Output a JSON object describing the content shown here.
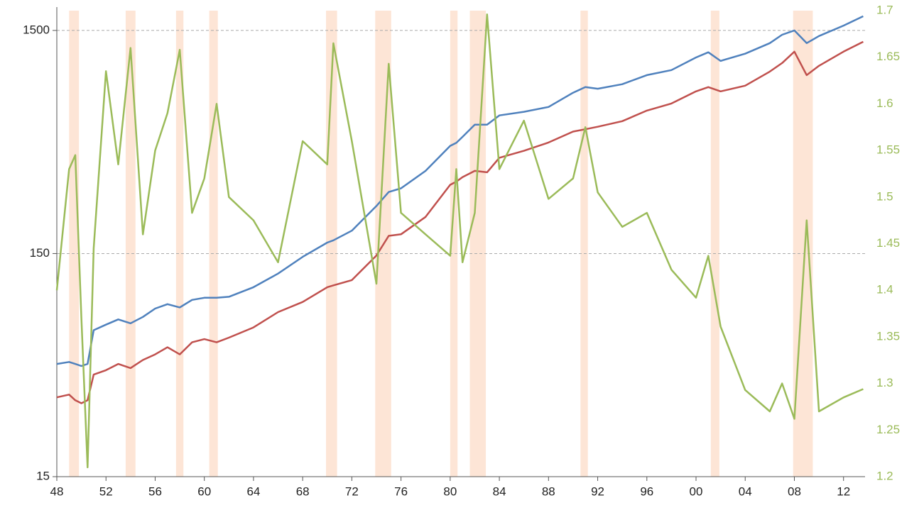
{
  "chart_data": {
    "type": "line",
    "x": [
      1948,
      1949,
      1949.5,
      1950,
      1950.5,
      1951,
      1952,
      1953,
      1954,
      1955,
      1956,
      1957,
      1958,
      1959,
      1960,
      1961,
      1962,
      1964,
      1966,
      1968,
      1970,
      1970.5,
      1972,
      1974,
      1975,
      1976,
      1978,
      1980,
      1980.5,
      1981,
      1982,
      1983,
      1984,
      1986,
      1988,
      1990,
      1991,
      1992,
      1994,
      1996,
      1998,
      2000,
      2001,
      2002,
      2004,
      2006,
      2007,
      2008,
      2009,
      2010,
      2012,
      2013.6
    ],
    "series": [
      {
        "color": "#4f81bd",
        "values": [
          48,
          49,
          48,
          47,
          48,
          68,
          72,
          76,
          73,
          78,
          85,
          89,
          86,
          93,
          95,
          95,
          96,
          106,
          122,
          145,
          168,
          172,
          190,
          245,
          283,
          294,
          352,
          456,
          470,
          500,
          567,
          567,
          624,
          648,
          681,
          789,
          836,
          822,
          861,
          946,
          996,
          1135,
          1197,
          1095,
          1180,
          1316,
          1435,
          1500,
          1316,
          1416,
          1577,
          1736
        ]
      },
      {
        "color": "#c0504d",
        "values": [
          34,
          35,
          33,
          32,
          33,
          43,
          45,
          48,
          46,
          50,
          53,
          57,
          53,
          60,
          62,
          60,
          63,
          70,
          82,
          91,
          106,
          108,
          114,
          147,
          180,
          183,
          219,
          305,
          315,
          330,
          352,
          347,
          403,
          433,
          472,
          528,
          541,
          555,
          588,
          656,
          706,
          800,
          836,
          800,
          848,
          981,
          1071,
          1205,
          946,
          1041,
          1205,
          1334
        ]
      },
      {
        "color": "#9bbb59",
        "axis": "y2",
        "values": [
          1.4,
          1.53,
          1.545,
          1.37,
          1.21,
          1.445,
          1.635,
          1.535,
          1.66,
          1.46,
          1.55,
          1.59,
          1.658,
          1.483,
          1.52,
          1.6,
          1.5,
          1.475,
          1.43,
          1.56,
          1.535,
          1.665,
          1.56,
          1.407,
          1.643,
          1.483,
          1.46,
          1.437,
          1.53,
          1.43,
          1.483,
          1.696,
          1.53,
          1.582,
          1.498,
          1.52,
          1.575,
          1.505,
          1.468,
          1.483,
          1.422,
          1.392,
          1.437,
          1.361,
          1.293,
          1.27,
          1.3,
          1.262,
          1.475,
          1.27,
          1.285,
          1.294
        ]
      }
    ],
    "shading_color": "#fde5d6",
    "shading": [
      [
        1949.0,
        1949.8
      ],
      [
        1953.6,
        1954.4
      ],
      [
        1957.7,
        1958.3
      ],
      [
        1960.4,
        1961.1
      ],
      [
        1969.9,
        1970.8
      ],
      [
        1973.9,
        1975.2
      ],
      [
        1980.0,
        1980.6
      ],
      [
        1981.6,
        1982.9
      ],
      [
        1990.6,
        1991.2
      ],
      [
        2001.2,
        2001.9
      ],
      [
        2007.9,
        2009.5
      ]
    ],
    "xlim": [
      1948,
      2013.75
    ],
    "xticks": [
      {
        "value": 1948,
        "label": "48"
      },
      {
        "value": 1952,
        "label": "52"
      },
      {
        "value": 1956,
        "label": "56"
      },
      {
        "value": 1960,
        "label": "60"
      },
      {
        "value": 1964,
        "label": "64"
      },
      {
        "value": 1968,
        "label": "68"
      },
      {
        "value": 1972,
        "label": "72"
      },
      {
        "value": 1976,
        "label": "76"
      },
      {
        "value": 1980,
        "label": "80"
      },
      {
        "value": 1984,
        "label": "84"
      },
      {
        "value": 1988,
        "label": "88"
      },
      {
        "value": 1992,
        "label": "92"
      },
      {
        "value": 1996,
        "label": "96"
      },
      {
        "value": 2000,
        "label": "00"
      },
      {
        "value": 2004,
        "label": "04"
      },
      {
        "value": 2008,
        "label": "08"
      },
      {
        "value": 2012,
        "label": "12"
      }
    ],
    "ylim": [
      15,
      1840
    ],
    "ylog": true,
    "yticks": [
      15,
      150,
      1500
    ],
    "y2lim": [
      1.2,
      1.7
    ],
    "y2ticks": [
      1.2,
      1.25,
      1.3,
      1.35,
      1.4,
      1.45,
      1.5,
      1.55,
      1.6,
      1.65,
      1.7
    ],
    "grid": true
  }
}
